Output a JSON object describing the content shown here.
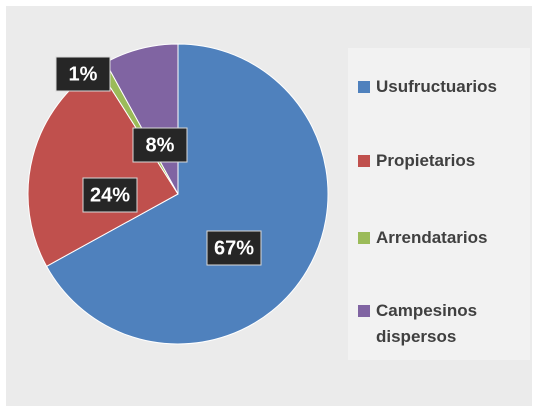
{
  "chart_data": {
    "type": "pie",
    "categories": [
      "Usufructuarios",
      "Propietarios",
      "Arrendatarios",
      "Campesinos dispersos"
    ],
    "values": [
      67,
      24,
      1,
      8
    ],
    "value_labels": [
      "67%",
      "24%",
      "1%",
      "8%"
    ],
    "colors": [
      "#4f81bd",
      "#c0504d",
      "#9bbb59",
      "#8064a2"
    ],
    "legend": "right"
  }
}
